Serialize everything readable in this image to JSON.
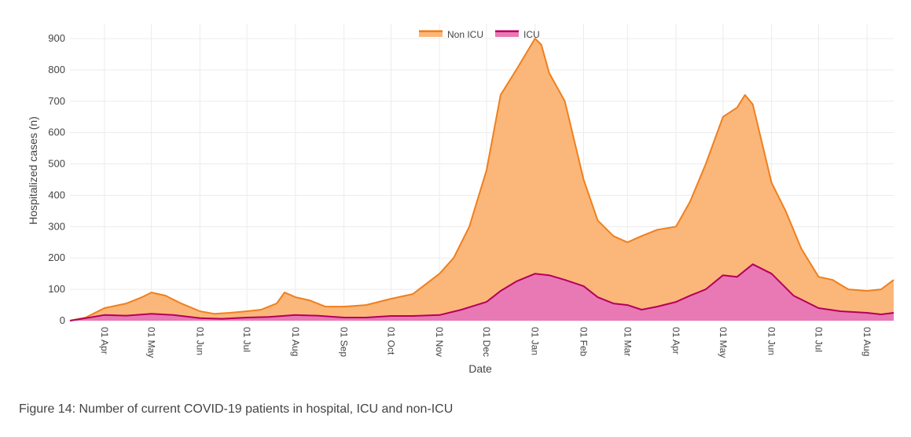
{
  "caption": "Figure 14: Number of current COVID-19 patients in hospital, ICU and non-ICU",
  "colors": {
    "non_icu_fill": "#fbb77a",
    "non_icu_line": "#f07f1d",
    "icu_fill": "#e879b5",
    "icu_line": "#b4005c",
    "grid": "#ececec"
  },
  "chart_data": {
    "type": "area",
    "title": "",
    "xlabel": "Date",
    "ylabel": "Hospitalized cases (n)",
    "ylim": [
      0,
      900
    ],
    "yticks": [
      0,
      100,
      200,
      300,
      400,
      500,
      600,
      700,
      800,
      900
    ],
    "x_start": "2020-03-10",
    "x_end": "2021-08-18",
    "xtick_dates": [
      "2020-04-01",
      "2020-05-01",
      "2020-06-01",
      "2020-07-01",
      "2020-08-01",
      "2020-09-01",
      "2020-10-01",
      "2020-11-01",
      "2020-12-01",
      "2021-01-01",
      "2021-02-01",
      "2021-03-01",
      "2021-04-01",
      "2021-05-01",
      "2021-06-01",
      "2021-07-01",
      "2021-08-01"
    ],
    "xtick_labels": [
      "01 Apr",
      "01 May",
      "01 Jun",
      "01 Jul",
      "01 Aug",
      "01 Sep",
      "01 Oct",
      "01 Nov",
      "01 Dec",
      "01 Jan",
      "01 Feb",
      "01 Mar",
      "01 Apr",
      "01 May",
      "01 Jun",
      "01 Jul",
      "01 Aug"
    ],
    "legend": [
      "Non ICU",
      "ICU"
    ],
    "legend_position": "top-center",
    "series": [
      {
        "name": "Non ICU",
        "stacked_total": true,
        "x": [
          "2020-03-10",
          "2020-03-20",
          "2020-04-01",
          "2020-04-15",
          "2020-04-25",
          "2020-05-01",
          "2020-05-10",
          "2020-05-20",
          "2020-06-01",
          "2020-06-10",
          "2020-06-20",
          "2020-07-01",
          "2020-07-10",
          "2020-07-20",
          "2020-07-25",
          "2020-08-01",
          "2020-08-10",
          "2020-08-20",
          "2020-09-01",
          "2020-09-15",
          "2020-10-01",
          "2020-10-15",
          "2020-11-01",
          "2020-11-10",
          "2020-11-20",
          "2020-12-01",
          "2020-12-10",
          "2020-12-20",
          "2021-01-01",
          "2021-01-05",
          "2021-01-10",
          "2021-01-20",
          "2021-02-01",
          "2021-02-10",
          "2021-02-20",
          "2021-03-01",
          "2021-03-10",
          "2021-03-20",
          "2021-04-01",
          "2021-04-10",
          "2021-04-20",
          "2021-05-01",
          "2021-05-10",
          "2021-05-15",
          "2021-05-20",
          "2021-06-01",
          "2021-06-10",
          "2021-06-20",
          "2021-07-01",
          "2021-07-10",
          "2021-07-20",
          "2021-08-01",
          "2021-08-10",
          "2021-08-18"
        ],
        "values": [
          0,
          10,
          40,
          55,
          75,
          90,
          80,
          55,
          30,
          22,
          25,
          30,
          35,
          55,
          90,
          75,
          65,
          45,
          45,
          50,
          70,
          85,
          150,
          200,
          300,
          480,
          720,
          800,
          900,
          880,
          790,
          700,
          450,
          320,
          270,
          250,
          270,
          290,
          300,
          380,
          500,
          650,
          680,
          720,
          690,
          440,
          350,
          230,
          140,
          130,
          100,
          95,
          100,
          130
        ]
      },
      {
        "name": "ICU",
        "x": [
          "2020-03-10",
          "2020-03-20",
          "2020-04-01",
          "2020-04-15",
          "2020-05-01",
          "2020-05-15",
          "2020-06-01",
          "2020-06-15",
          "2020-07-01",
          "2020-07-15",
          "2020-08-01",
          "2020-08-15",
          "2020-09-01",
          "2020-09-15",
          "2020-10-01",
          "2020-10-15",
          "2020-11-01",
          "2020-11-15",
          "2020-12-01",
          "2020-12-10",
          "2020-12-20",
          "2021-01-01",
          "2021-01-10",
          "2021-01-20",
          "2021-02-01",
          "2021-02-10",
          "2021-02-20",
          "2021-03-01",
          "2021-03-10",
          "2021-03-20",
          "2021-04-01",
          "2021-04-10",
          "2021-04-20",
          "2021-05-01",
          "2021-05-10",
          "2021-05-20",
          "2021-06-01",
          "2021-06-15",
          "2021-07-01",
          "2021-07-15",
          "2021-08-01",
          "2021-08-10",
          "2021-08-18"
        ],
        "values": [
          0,
          8,
          18,
          16,
          22,
          18,
          8,
          6,
          10,
          12,
          18,
          16,
          10,
          10,
          15,
          15,
          18,
          35,
          60,
          95,
          125,
          150,
          145,
          130,
          110,
          75,
          55,
          50,
          35,
          45,
          60,
          80,
          100,
          145,
          140,
          180,
          150,
          80,
          40,
          30,
          25,
          20,
          25
        ]
      }
    ]
  }
}
